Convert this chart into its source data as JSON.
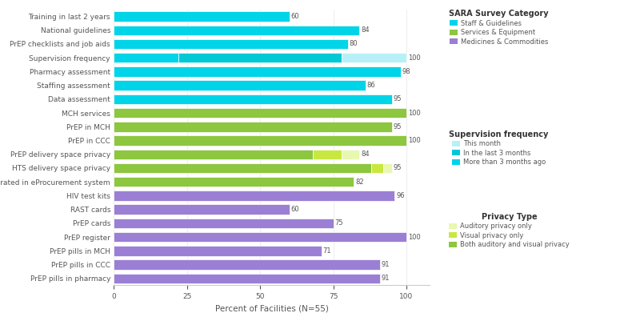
{
  "categories": [
    "Training in last 2 years",
    "National guidelines",
    "PrEP checklists and job aids",
    "Supervision frequency",
    "Pharmacy assessment",
    "Staffing assessment",
    "Data assessment",
    "MCH services",
    "PrEP in MCH",
    "PrEP in CCC",
    "PrEP delivery space privacy",
    "HTS delivery space privacy",
    "PrEP integrated in eProcurement system",
    "HIV test kits",
    "RAST cards",
    "PrEP cards",
    "PrEP register",
    "PrEP pills in MCH",
    "PrEP pills in CCC",
    "PrEP pills in pharmacy"
  ],
  "bar_data": [
    {
      "segments": [
        {
          "value": 60,
          "color": "#00d4e8"
        }
      ],
      "label": 60
    },
    {
      "segments": [
        {
          "value": 84,
          "color": "#00d4e8"
        }
      ],
      "label": 84
    },
    {
      "segments": [
        {
          "value": 80,
          "color": "#00d4e8"
        }
      ],
      "label": 80
    },
    {
      "segments": [
        {
          "value": 22,
          "color": "#00d4e8"
        },
        {
          "value": 56,
          "color": "#00c8d4"
        },
        {
          "value": 22,
          "color": "#b8f0f8"
        }
      ],
      "label": 100
    },
    {
      "segments": [
        {
          "value": 98,
          "color": "#00d4e8"
        }
      ],
      "label": 98
    },
    {
      "segments": [
        {
          "value": 86,
          "color": "#00d4e8"
        }
      ],
      "label": 86
    },
    {
      "segments": [
        {
          "value": 95,
          "color": "#00d4e8"
        }
      ],
      "label": 95
    },
    {
      "segments": [
        {
          "value": 100,
          "color": "#8dc63f"
        }
      ],
      "label": 100
    },
    {
      "segments": [
        {
          "value": 95,
          "color": "#8dc63f"
        }
      ],
      "label": 95
    },
    {
      "segments": [
        {
          "value": 100,
          "color": "#8dc63f"
        }
      ],
      "label": 100
    },
    {
      "segments": [
        {
          "value": 68,
          "color": "#8dc63f"
        },
        {
          "value": 10,
          "color": "#c8e840"
        },
        {
          "value": 6,
          "color": "#e8f8b0"
        }
      ],
      "label": 84
    },
    {
      "segments": [
        {
          "value": 88,
          "color": "#8dc63f"
        },
        {
          "value": 4,
          "color": "#c8e840"
        },
        {
          "value": 3,
          "color": "#e8f8b0"
        }
      ],
      "label": 95
    },
    {
      "segments": [
        {
          "value": 82,
          "color": "#8dc63f"
        }
      ],
      "label": 82
    },
    {
      "segments": [
        {
          "value": 96,
          "color": "#9b7fd4"
        }
      ],
      "label": 96
    },
    {
      "segments": [
        {
          "value": 60,
          "color": "#9b7fd4"
        }
      ],
      "label": 60
    },
    {
      "segments": [
        {
          "value": 75,
          "color": "#9b7fd4"
        }
      ],
      "label": 75
    },
    {
      "segments": [
        {
          "value": 100,
          "color": "#9b7fd4"
        }
      ],
      "label": 100
    },
    {
      "segments": [
        {
          "value": 71,
          "color": "#9b7fd4"
        }
      ],
      "label": 71
    },
    {
      "segments": [
        {
          "value": 91,
          "color": "#9b7fd4"
        }
      ],
      "label": 91
    },
    {
      "segments": [
        {
          "value": 91,
          "color": "#9b7fd4"
        }
      ],
      "label": 91
    }
  ],
  "xlabel": "Percent of Facilities (N=55)",
  "xlim": [
    0,
    108
  ],
  "xticks": [
    0,
    25,
    50,
    75,
    100
  ],
  "bg_color": "#ffffff",
  "legend_sara": {
    "title": "SARA Survey Category",
    "items": [
      {
        "label": "Staff & Guidelines",
        "color": "#00d4e8"
      },
      {
        "label": "Services & Equipment",
        "color": "#8dc63f"
      },
      {
        "label": "Medicines & Commodities",
        "color": "#9b7fd4"
      }
    ]
  },
  "legend_supervision": {
    "title": "Supervision frequency",
    "items": [
      {
        "label": "This month",
        "color": "#b8f0f8"
      },
      {
        "label": "In the last 3 months",
        "color": "#00c8d4"
      },
      {
        "label": "More than 3 months ago",
        "color": "#00d4e8"
      }
    ]
  },
  "legend_privacy": {
    "title": "Privacy Type",
    "items": [
      {
        "label": "Auditory privacy only",
        "color": "#e8f8b0"
      },
      {
        "label": "Visual privacy only",
        "color": "#c8e840"
      },
      {
        "label": "Both auditory and visual privacy",
        "color": "#8dc63f"
      }
    ]
  },
  "bar_height": 0.72,
  "label_fontsize": 6.0,
  "axis_label_fontsize": 7.5,
  "tick_fontsize": 6.5,
  "legend_title_fontsize": 7.0,
  "legend_item_fontsize": 6.0
}
